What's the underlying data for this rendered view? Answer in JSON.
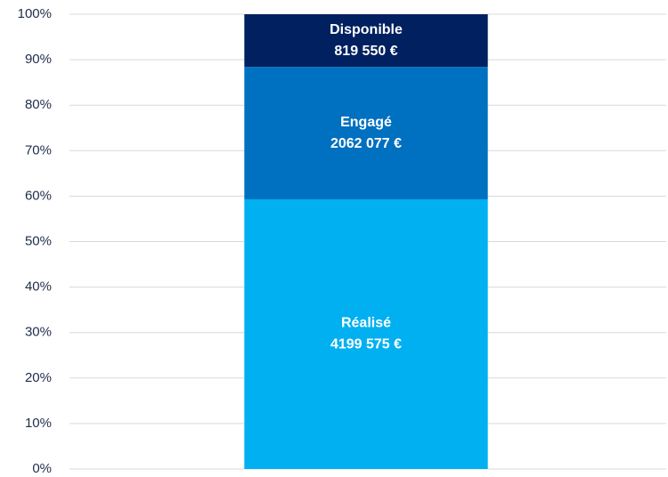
{
  "chart_data": {
    "type": "bar",
    "stacking": "percent",
    "categories": [
      null
    ],
    "series": [
      {
        "name": "Réalisé",
        "color": "#00b0f0",
        "values": [
          4199575
        ],
        "value_labels": [
          "4199 575 €"
        ]
      },
      {
        "name": "Engagé",
        "color": "#0070c0",
        "values": [
          2062077
        ],
        "value_labels": [
          "2062 077 €"
        ]
      },
      {
        "name": "Disponible",
        "color": "#002060",
        "values": [
          819550
        ],
        "value_labels": [
          "819 550 €"
        ]
      }
    ],
    "ylim": [
      0,
      100
    ],
    "yticks": [
      {
        "value": 0,
        "label": "0%"
      },
      {
        "value": 10,
        "label": "10%"
      },
      {
        "value": 20,
        "label": "20%"
      },
      {
        "value": 30,
        "label": "30%"
      },
      {
        "value": 40,
        "label": "40%"
      },
      {
        "value": 50,
        "label": "50%"
      },
      {
        "value": 60,
        "label": "60%"
      },
      {
        "value": 70,
        "label": "70%"
      },
      {
        "value": 80,
        "label": "80%"
      },
      {
        "value": 90,
        "label": "90%"
      },
      {
        "value": 100,
        "label": "100%"
      }
    ],
    "grid": true
  }
}
